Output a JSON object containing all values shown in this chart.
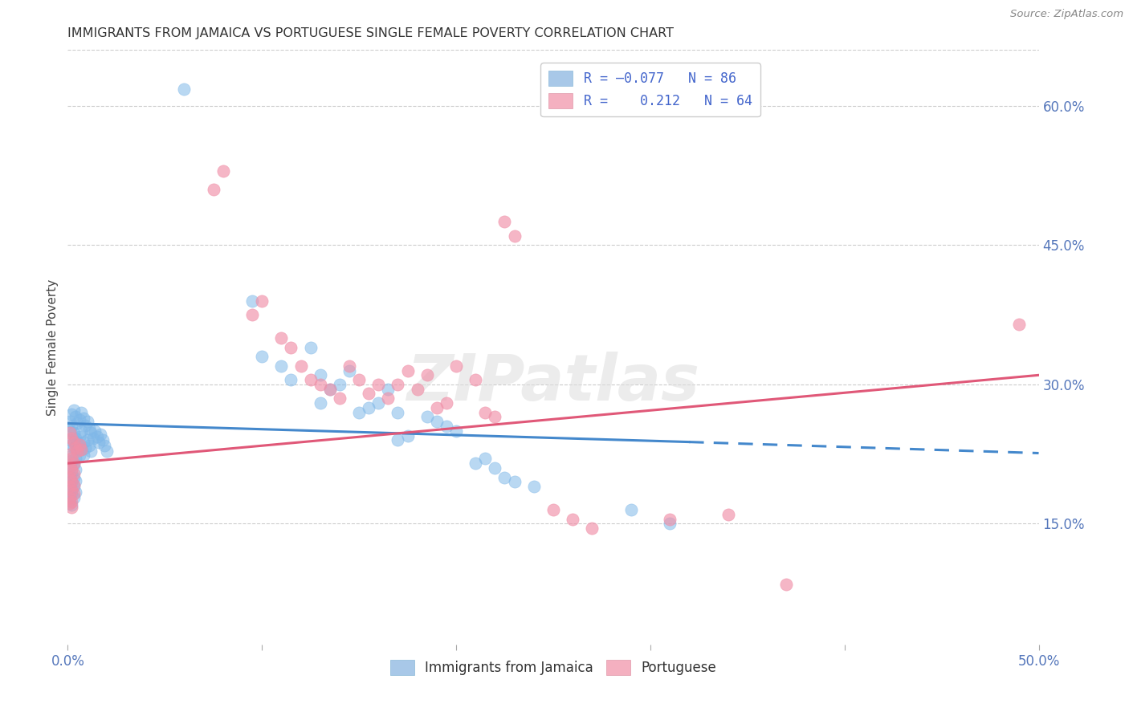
{
  "title": "IMMIGRANTS FROM JAMAICA VS PORTUGUESE SINGLE FEMALE POVERTY CORRELATION CHART",
  "source": "Source: ZipAtlas.com",
  "ylabel": "Single Female Poverty",
  "right_yticks": [
    0.15,
    0.3,
    0.45,
    0.6
  ],
  "right_ytick_labels": [
    "15.0%",
    "30.0%",
    "45.0%",
    "60.0%"
  ],
  "xmin": 0.0,
  "xmax": 0.5,
  "ymin": 0.02,
  "ymax": 0.66,
  "legend_title_blue": "Immigrants from Jamaica",
  "legend_title_pink": "Portuguese",
  "jamaica_color": "#80b8e8",
  "portuguese_color": "#f090a8",
  "trend_blue_color": "#4488cc",
  "trend_pink_color": "#e05878",
  "watermark": "ZIPatlas",
  "jamaica_points": [
    [
      0.001,
      0.26
    ],
    [
      0.002,
      0.268
    ],
    [
      0.003,
      0.272
    ],
    [
      0.004,
      0.265
    ],
    [
      0.005,
      0.258
    ],
    [
      0.006,
      0.262
    ],
    [
      0.007,
      0.27
    ],
    [
      0.008,
      0.264
    ],
    [
      0.009,
      0.256
    ],
    [
      0.01,
      0.26
    ],
    [
      0.011,
      0.252
    ],
    [
      0.012,
      0.248
    ],
    [
      0.013,
      0.242
    ],
    [
      0.014,
      0.25
    ],
    [
      0.015,
      0.244
    ],
    [
      0.016,
      0.238
    ],
    [
      0.017,
      0.246
    ],
    [
      0.018,
      0.24
    ],
    [
      0.019,
      0.234
    ],
    [
      0.02,
      0.228
    ],
    [
      0.001,
      0.25
    ],
    [
      0.002,
      0.255
    ],
    [
      0.003,
      0.248
    ],
    [
      0.004,
      0.242
    ],
    [
      0.005,
      0.238
    ],
    [
      0.006,
      0.244
    ],
    [
      0.007,
      0.25
    ],
    [
      0.008,
      0.238
    ],
    [
      0.009,
      0.232
    ],
    [
      0.01,
      0.24
    ],
    [
      0.011,
      0.234
    ],
    [
      0.012,
      0.228
    ],
    [
      0.001,
      0.24
    ],
    [
      0.002,
      0.235
    ],
    [
      0.003,
      0.232
    ],
    [
      0.004,
      0.238
    ],
    [
      0.005,
      0.23
    ],
    [
      0.006,
      0.224
    ],
    [
      0.007,
      0.23
    ],
    [
      0.008,
      0.224
    ],
    [
      0.001,
      0.222
    ],
    [
      0.002,
      0.218
    ],
    [
      0.003,
      0.214
    ],
    [
      0.004,
      0.22
    ],
    [
      0.001,
      0.21
    ],
    [
      0.002,
      0.205
    ],
    [
      0.003,
      0.2
    ],
    [
      0.004,
      0.208
    ],
    [
      0.001,
      0.198
    ],
    [
      0.002,
      0.195
    ],
    [
      0.003,
      0.19
    ],
    [
      0.004,
      0.196
    ],
    [
      0.001,
      0.186
    ],
    [
      0.002,
      0.183
    ],
    [
      0.003,
      0.178
    ],
    [
      0.004,
      0.184
    ],
    [
      0.001,
      0.175
    ],
    [
      0.002,
      0.17
    ],
    [
      0.06,
      0.618
    ],
    [
      0.095,
      0.39
    ],
    [
      0.1,
      0.33
    ],
    [
      0.11,
      0.32
    ],
    [
      0.115,
      0.305
    ],
    [
      0.125,
      0.34
    ],
    [
      0.13,
      0.31
    ],
    [
      0.13,
      0.28
    ],
    [
      0.135,
      0.295
    ],
    [
      0.14,
      0.3
    ],
    [
      0.145,
      0.315
    ],
    [
      0.15,
      0.27
    ],
    [
      0.155,
      0.275
    ],
    [
      0.16,
      0.28
    ],
    [
      0.165,
      0.295
    ],
    [
      0.17,
      0.27
    ],
    [
      0.17,
      0.24
    ],
    [
      0.175,
      0.245
    ],
    [
      0.185,
      0.265
    ],
    [
      0.19,
      0.26
    ],
    [
      0.195,
      0.255
    ],
    [
      0.2,
      0.25
    ],
    [
      0.21,
      0.215
    ],
    [
      0.215,
      0.22
    ],
    [
      0.22,
      0.21
    ],
    [
      0.225,
      0.2
    ],
    [
      0.23,
      0.195
    ],
    [
      0.24,
      0.19
    ],
    [
      0.29,
      0.165
    ],
    [
      0.31,
      0.15
    ]
  ],
  "portuguese_points": [
    [
      0.001,
      0.248
    ],
    [
      0.002,
      0.242
    ],
    [
      0.003,
      0.238
    ],
    [
      0.004,
      0.232
    ],
    [
      0.005,
      0.228
    ],
    [
      0.006,
      0.235
    ],
    [
      0.007,
      0.23
    ],
    [
      0.001,
      0.225
    ],
    [
      0.002,
      0.22
    ],
    [
      0.003,
      0.215
    ],
    [
      0.001,
      0.212
    ],
    [
      0.002,
      0.208
    ],
    [
      0.003,
      0.204
    ],
    [
      0.001,
      0.2
    ],
    [
      0.002,
      0.196
    ],
    [
      0.003,
      0.192
    ],
    [
      0.001,
      0.19
    ],
    [
      0.002,
      0.186
    ],
    [
      0.003,
      0.182
    ],
    [
      0.001,
      0.178
    ],
    [
      0.002,
      0.174
    ],
    [
      0.001,
      0.172
    ],
    [
      0.002,
      0.168
    ],
    [
      0.075,
      0.51
    ],
    [
      0.08,
      0.53
    ],
    [
      0.095,
      0.375
    ],
    [
      0.1,
      0.39
    ],
    [
      0.11,
      0.35
    ],
    [
      0.115,
      0.34
    ],
    [
      0.12,
      0.32
    ],
    [
      0.125,
      0.305
    ],
    [
      0.13,
      0.3
    ],
    [
      0.135,
      0.295
    ],
    [
      0.14,
      0.285
    ],
    [
      0.145,
      0.32
    ],
    [
      0.15,
      0.305
    ],
    [
      0.155,
      0.29
    ],
    [
      0.16,
      0.3
    ],
    [
      0.165,
      0.285
    ],
    [
      0.17,
      0.3
    ],
    [
      0.175,
      0.315
    ],
    [
      0.18,
      0.295
    ],
    [
      0.185,
      0.31
    ],
    [
      0.19,
      0.275
    ],
    [
      0.195,
      0.28
    ],
    [
      0.2,
      0.32
    ],
    [
      0.21,
      0.305
    ],
    [
      0.215,
      0.27
    ],
    [
      0.22,
      0.265
    ],
    [
      0.225,
      0.475
    ],
    [
      0.23,
      0.46
    ],
    [
      0.25,
      0.165
    ],
    [
      0.26,
      0.155
    ],
    [
      0.27,
      0.145
    ],
    [
      0.31,
      0.155
    ],
    [
      0.34,
      0.16
    ],
    [
      0.37,
      0.085
    ],
    [
      0.49,
      0.365
    ]
  ],
  "jamaica_trend": {
    "x_start": 0.0,
    "y_start": 0.258,
    "x_solid_end": 0.32,
    "y_solid_end": 0.238,
    "x_dash_end": 0.5,
    "y_dash_end": 0.226
  },
  "portuguese_trend": {
    "x_start": 0.0,
    "y_start": 0.215,
    "x_end": 0.5,
    "y_end": 0.31
  }
}
